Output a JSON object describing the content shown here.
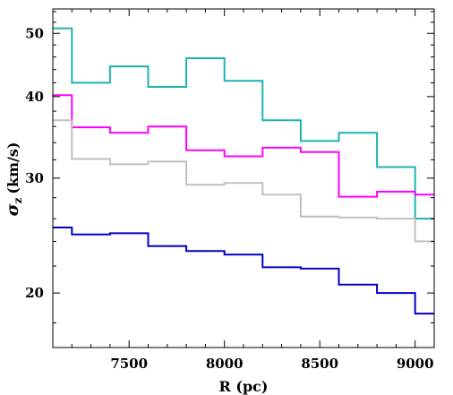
{
  "chart_data": {
    "type": "line",
    "step": "post",
    "xlabel": "R (pc)",
    "ylabel": "σz (km/s)",
    "ylabel_symbol": "σ",
    "ylabel_subscript": "z",
    "ylabel_units": "(km/s)",
    "yscale": "log",
    "xlim": [
      7100,
      9100
    ],
    "ylim": [
      16.5,
      54.5
    ],
    "x_ticks": [
      7500,
      8000,
      8500,
      9000
    ],
    "x_tick_labels": [
      "7500",
      "8000",
      "8500",
      "9000"
    ],
    "y_ticks": [
      20,
      30,
      40,
      50
    ],
    "y_tick_labels": [
      "20",
      "30",
      "40",
      "50"
    ],
    "grid": false,
    "legend": "none",
    "x_edges": [
      7100,
      7200,
      7400,
      7600,
      7800,
      8000,
      8200,
      8400,
      8600,
      8800,
      9000,
      9100
    ],
    "series": [
      {
        "color": "#1fb2b2",
        "values": [
          50.9,
          42.0,
          44.5,
          41.4,
          45.8,
          42.3,
          36.8,
          34.2,
          35.2,
          31.2,
          26.0
        ]
      },
      {
        "color": "#ff00ff",
        "values": [
          40.2,
          35.9,
          35.2,
          36.0,
          33.1,
          32.4,
          33.4,
          32.9,
          28.1,
          28.6,
          28.3
        ]
      },
      {
        "color": "#c0c0c0",
        "values": [
          36.8,
          32.1,
          31.5,
          31.8,
          29.3,
          29.5,
          28.3,
          26.2,
          26.1,
          26.0,
          24.0
        ]
      },
      {
        "color": "#0000c8",
        "values": [
          25.2,
          24.6,
          24.7,
          23.6,
          23.2,
          22.9,
          21.9,
          21.8,
          20.6,
          20.0,
          18.6
        ]
      }
    ]
  }
}
